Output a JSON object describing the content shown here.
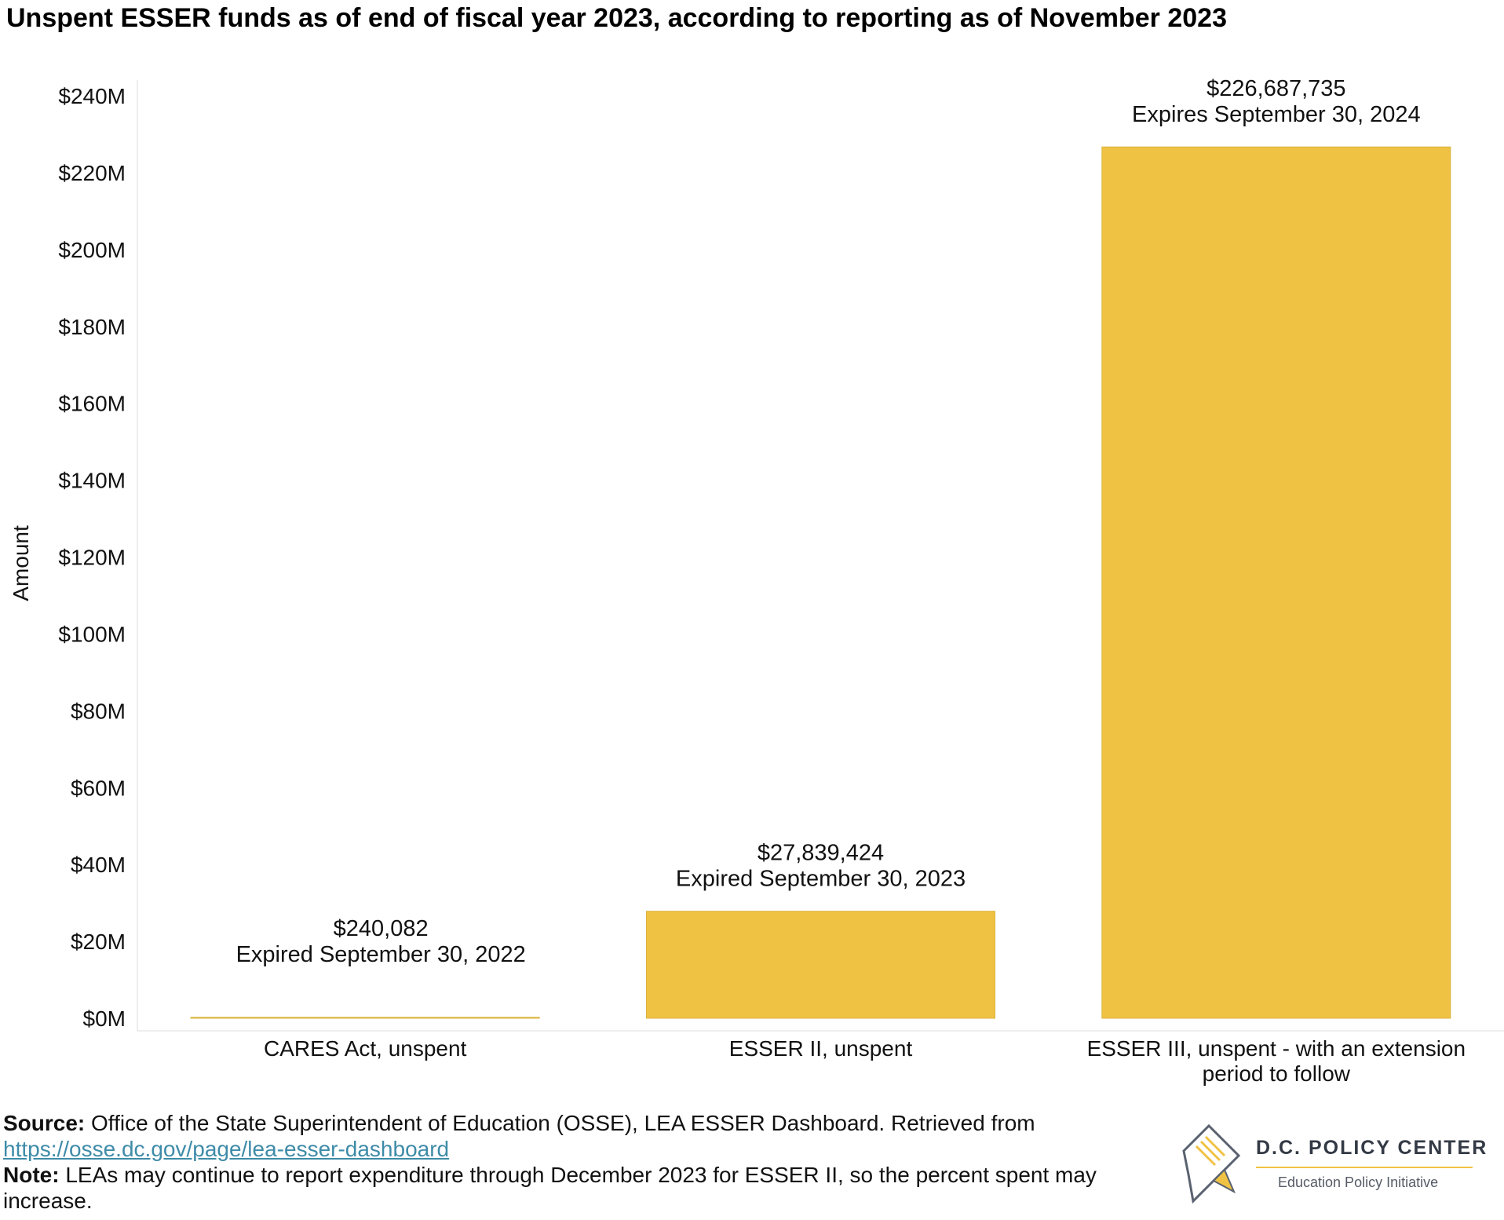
{
  "title": "Unspent ESSER funds as of end of fiscal year 2023, according to reporting as of November 2023",
  "colors": {
    "bar": "#f0c244",
    "bar_edge": "#d9b43c",
    "axis": "#dddddd",
    "link": "#3e8ba8"
  },
  "chart_data": {
    "type": "bar",
    "title": "Unspent ESSER funds as of end of fiscal year 2023, according to reporting as of November 2023",
    "ylabel": "Amount",
    "xlabel": "",
    "ylim": [
      0,
      240000000
    ],
    "yticks": [
      0,
      20000000,
      40000000,
      60000000,
      80000000,
      100000000,
      120000000,
      140000000,
      160000000,
      180000000,
      200000000,
      220000000,
      240000000
    ],
    "ytick_labels": [
      "$0M",
      "$20M",
      "$40M",
      "$60M",
      "$80M",
      "$100M",
      "$120M",
      "$140M",
      "$160M",
      "$180M",
      "$200M",
      "$220M",
      "$240M"
    ],
    "grid": false,
    "categories": [
      [
        "CARES Act, unspent"
      ],
      [
        "ESSER II, unspent"
      ],
      [
        "ESSER III, unspent - with an extension",
        "period to follow"
      ]
    ],
    "values": [
      240082,
      27839424,
      226687735
    ],
    "value_labels": [
      "$240,082",
      "$27,839,424",
      "$226,687,735"
    ],
    "annotations": [
      "Expired September 30, 2022",
      "Expired September 30, 2023",
      "Expires September 30, 2024"
    ]
  },
  "footer": {
    "source_label": "Source:",
    "source_text": " Office of the State Superintendent of Education (OSSE), LEA ESSER Dashboard. Retrieved from ",
    "source_link": "https://osse.dc.gov/page/lea-esser-dashboard",
    "note_label": "Note:",
    "note_text": " LEAs may continue to report expenditure through December 2023 for ESSER II, so the percent spent may increase."
  },
  "logo": {
    "name": "D.C. POLICY CENTER",
    "subtitle": "Education Policy Initiative",
    "icon": "dc-map-pencil-icon"
  }
}
